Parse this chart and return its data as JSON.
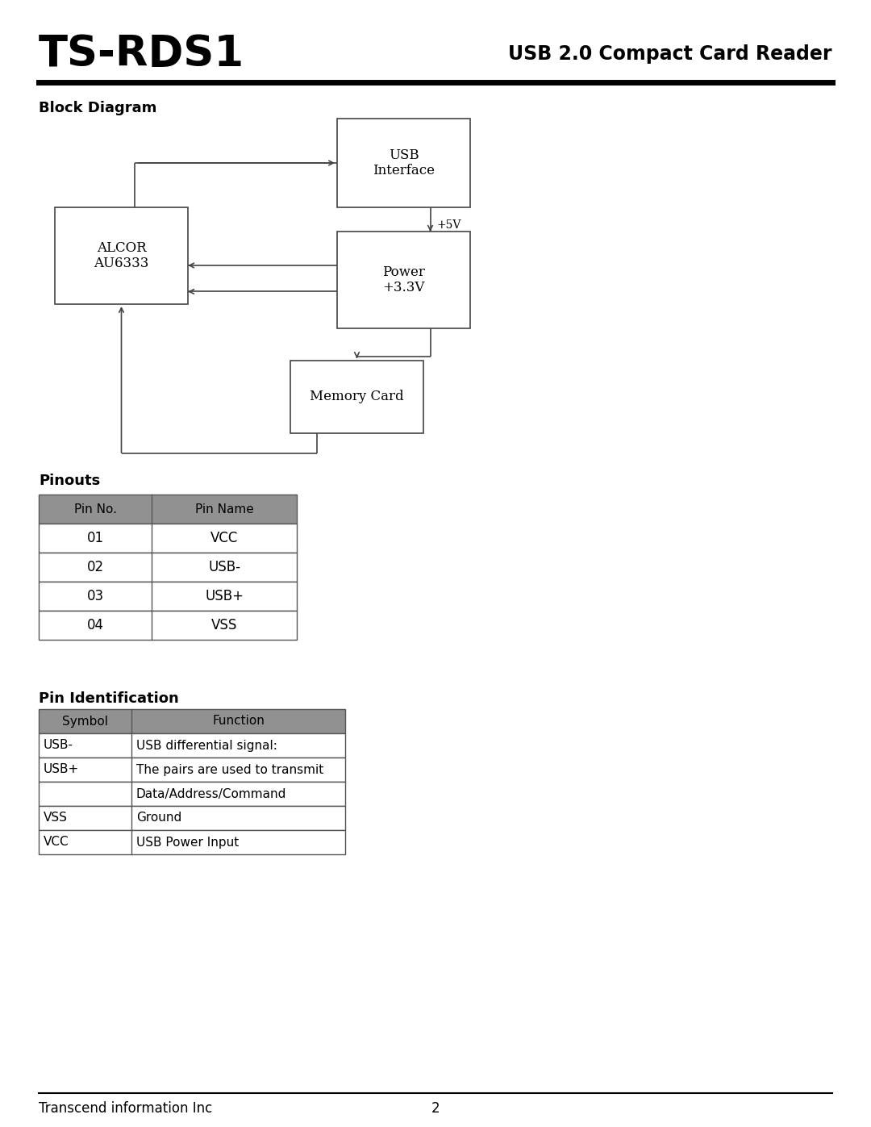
{
  "title_left": "TS-RDS1",
  "title_right": "USB 2.0 Compact Card Reader",
  "section1": "Block Diagram",
  "section2": "Pinouts",
  "section3": "Pin Identification",
  "plus5v_label": "+5V",
  "pinouts_header": [
    "Pin No.",
    "Pin Name"
  ],
  "pinouts_data": [
    [
      "01",
      "VCC"
    ],
    [
      "02",
      "USB-"
    ],
    [
      "03",
      "USB+"
    ],
    [
      "04",
      "VSS"
    ]
  ],
  "pinid_header": [
    "Symbol",
    "Function"
  ],
  "pinid_rows": [
    {
      "col1": "USB-",
      "col2": "USB differential signal:"
    },
    {
      "col1": "USB+",
      "col2": "The pairs are used to transmit"
    },
    {
      "col1": "",
      "col2": "Data/Address/Command"
    },
    {
      "col1": "VSS",
      "col2": "Ground"
    },
    {
      "col1": "VCC",
      "col2": "USB Power Input"
    }
  ],
  "footer_left": "Transcend information Inc",
  "footer_page": "2",
  "header_gray": "#919191",
  "border_color": "#555555",
  "bg_color": "#ffffff",
  "text_color": "#000000",
  "block_edge_color": "#444444",
  "arrow_color": "#444444"
}
